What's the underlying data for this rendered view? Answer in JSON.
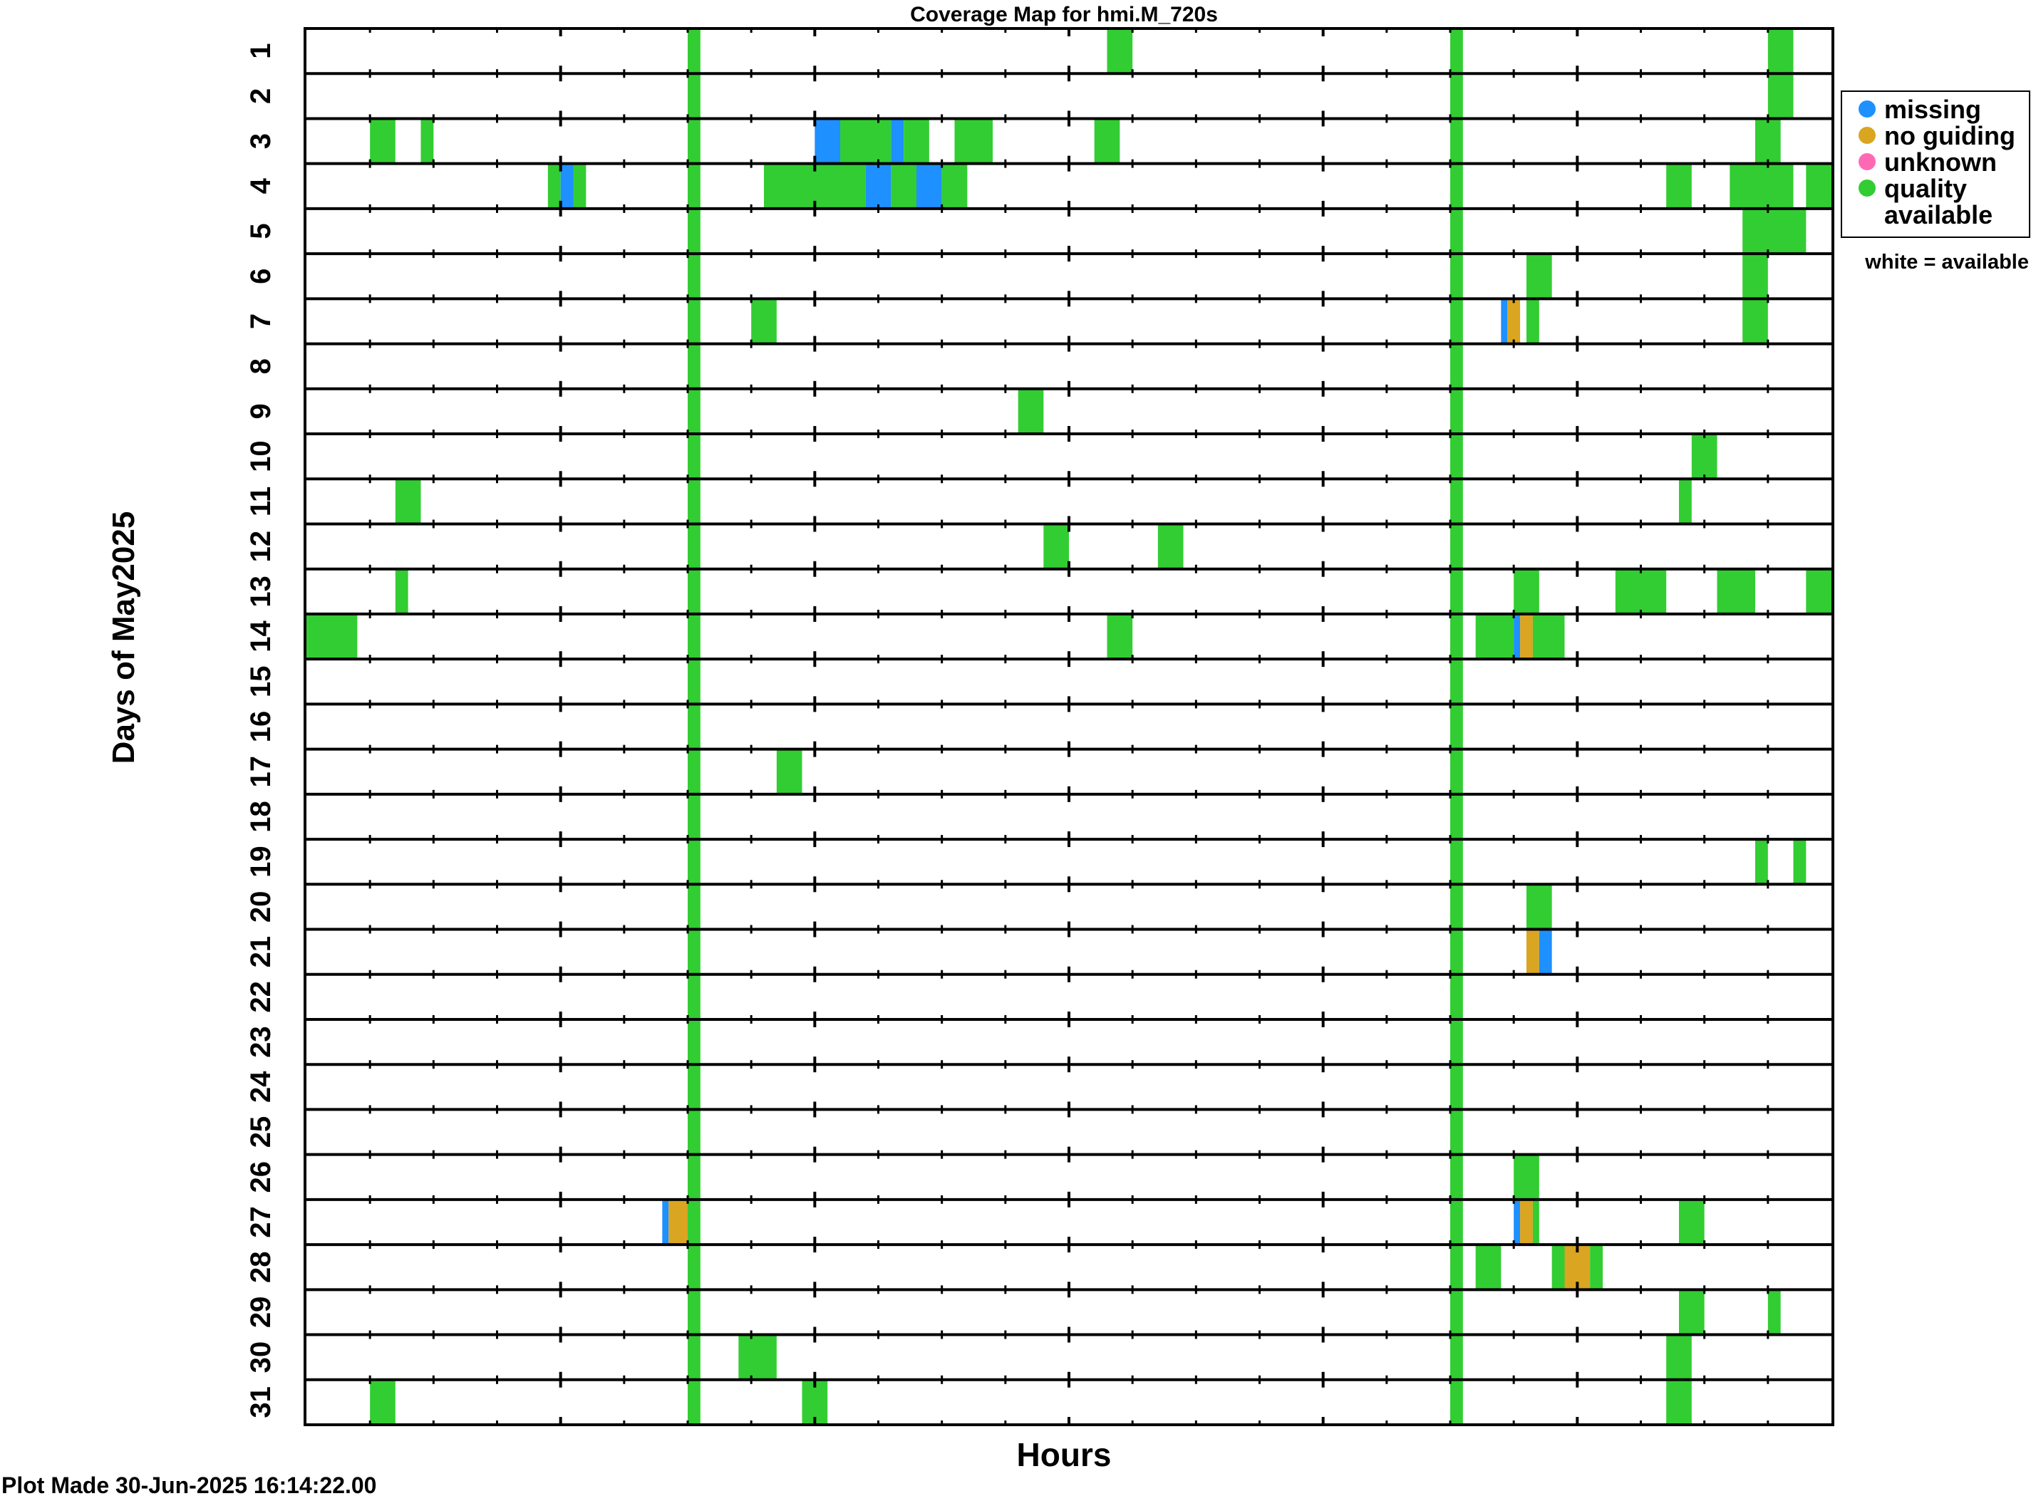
{
  "chart_data": {
    "type": "heatmap",
    "title": "Coverage Map for hmi.M_720s",
    "xlabel": "Hours",
    "ylabel": "Days of May2025",
    "xlim": [
      0,
      24
    ],
    "x_ticks_hours": [
      0,
      1,
      2,
      3,
      4,
      5,
      6,
      7,
      8,
      9,
      10,
      11,
      12,
      13,
      14,
      15,
      16,
      17,
      18,
      19,
      20,
      21,
      22,
      23,
      24
    ],
    "days": [
      1,
      2,
      3,
      4,
      5,
      6,
      7,
      8,
      9,
      10,
      11,
      12,
      13,
      14,
      15,
      16,
      17,
      18,
      19,
      20,
      21,
      22,
      23,
      24,
      25,
      26,
      27,
      28,
      29,
      30,
      31
    ],
    "day_labels": [
      "1",
      "2",
      "3",
      "4",
      "5",
      "6",
      "7",
      "8",
      "9",
      "10",
      "11",
      "12",
      "13",
      "14",
      "15",
      "16",
      "17",
      "18",
      "19",
      "20",
      "21",
      "22",
      "23",
      "24",
      "25",
      "26",
      "27",
      "28",
      "29",
      "30",
      "31"
    ],
    "grid": true,
    "legend": {
      "position": "right",
      "items": [
        {
          "label": "missing",
          "color": "#1e90ff"
        },
        {
          "label": "no guiding",
          "color": "#daa520"
        },
        {
          "label": "unknown",
          "color": "#ff69b4"
        },
        {
          "label": "quality",
          "label2": "available",
          "color": "#32cd32"
        }
      ],
      "note": "white = available"
    },
    "colors": {
      "missing": "#1e90ff",
      "noguiding": "#daa520",
      "unknown": "#ff69b4",
      "quality": "#32cd32"
    },
    "daily_bands": [
      {
        "start": 6.0,
        "end": 6.2,
        "status": "quality"
      },
      {
        "start": 18.0,
        "end": 18.2,
        "status": "quality"
      }
    ],
    "segments": [
      {
        "day": 1,
        "start": 12.6,
        "end": 13.0,
        "status": "quality"
      },
      {
        "day": 1,
        "start": 23.0,
        "end": 23.4,
        "status": "quality"
      },
      {
        "day": 2,
        "start": 23.0,
        "end": 23.4,
        "status": "quality"
      },
      {
        "day": 3,
        "start": 1.0,
        "end": 1.4,
        "status": "quality"
      },
      {
        "day": 3,
        "start": 1.8,
        "end": 2.0,
        "status": "quality"
      },
      {
        "day": 3,
        "start": 8.0,
        "end": 8.4,
        "status": "missing"
      },
      {
        "day": 3,
        "start": 8.4,
        "end": 9.2,
        "status": "quality"
      },
      {
        "day": 3,
        "start": 9.2,
        "end": 9.4,
        "status": "missing"
      },
      {
        "day": 3,
        "start": 9.4,
        "end": 9.8,
        "status": "quality"
      },
      {
        "day": 3,
        "start": 10.2,
        "end": 10.8,
        "status": "quality"
      },
      {
        "day": 3,
        "start": 12.4,
        "end": 12.8,
        "status": "quality"
      },
      {
        "day": 3,
        "start": 22.8,
        "end": 23.2,
        "status": "quality"
      },
      {
        "day": 4,
        "start": 3.8,
        "end": 4.0,
        "status": "quality"
      },
      {
        "day": 4,
        "start": 4.0,
        "end": 4.2,
        "status": "missing"
      },
      {
        "day": 4,
        "start": 4.2,
        "end": 4.4,
        "status": "quality"
      },
      {
        "day": 4,
        "start": 7.2,
        "end": 8.8,
        "status": "quality"
      },
      {
        "day": 4,
        "start": 8.8,
        "end": 9.2,
        "status": "missing"
      },
      {
        "day": 4,
        "start": 9.2,
        "end": 9.6,
        "status": "quality"
      },
      {
        "day": 4,
        "start": 9.6,
        "end": 10.0,
        "status": "missing"
      },
      {
        "day": 4,
        "start": 10.0,
        "end": 10.4,
        "status": "quality"
      },
      {
        "day": 4,
        "start": 21.4,
        "end": 21.8,
        "status": "quality"
      },
      {
        "day": 4,
        "start": 22.4,
        "end": 22.8,
        "status": "quality"
      },
      {
        "day": 4,
        "start": 22.8,
        "end": 23.4,
        "status": "quality"
      },
      {
        "day": 4,
        "start": 23.6,
        "end": 24.0,
        "status": "quality"
      },
      {
        "day": 5,
        "start": 22.6,
        "end": 23.6,
        "status": "quality"
      },
      {
        "day": 6,
        "start": 19.2,
        "end": 19.6,
        "status": "quality"
      },
      {
        "day": 6,
        "start": 22.6,
        "end": 23.0,
        "status": "quality"
      },
      {
        "day": 7,
        "start": 7.0,
        "end": 7.4,
        "status": "quality"
      },
      {
        "day": 7,
        "start": 18.8,
        "end": 18.9,
        "status": "missing"
      },
      {
        "day": 7,
        "start": 18.9,
        "end": 19.1,
        "status": "noguiding"
      },
      {
        "day": 7,
        "start": 19.2,
        "end": 19.4,
        "status": "quality"
      },
      {
        "day": 7,
        "start": 22.6,
        "end": 23.0,
        "status": "quality"
      },
      {
        "day": 9,
        "start": 11.2,
        "end": 11.6,
        "status": "quality"
      },
      {
        "day": 10,
        "start": 21.8,
        "end": 22.2,
        "status": "quality"
      },
      {
        "day": 11,
        "start": 1.4,
        "end": 1.8,
        "status": "quality"
      },
      {
        "day": 11,
        "start": 21.6,
        "end": 21.8,
        "status": "quality"
      },
      {
        "day": 12,
        "start": 11.6,
        "end": 12.0,
        "status": "quality"
      },
      {
        "day": 12,
        "start": 13.4,
        "end": 13.8,
        "status": "quality"
      },
      {
        "day": 13,
        "start": 1.4,
        "end": 1.6,
        "status": "quality"
      },
      {
        "day": 13,
        "start": 19.0,
        "end": 19.4,
        "status": "quality"
      },
      {
        "day": 13,
        "start": 20.6,
        "end": 21.4,
        "status": "quality"
      },
      {
        "day": 13,
        "start": 22.2,
        "end": 22.8,
        "status": "quality"
      },
      {
        "day": 13,
        "start": 23.6,
        "end": 24.0,
        "status": "quality"
      },
      {
        "day": 14,
        "start": 0.0,
        "end": 0.8,
        "status": "quality"
      },
      {
        "day": 14,
        "start": 12.6,
        "end": 13.0,
        "status": "quality"
      },
      {
        "day": 14,
        "start": 18.4,
        "end": 19.0,
        "status": "quality"
      },
      {
        "day": 14,
        "start": 19.0,
        "end": 19.1,
        "status": "missing"
      },
      {
        "day": 14,
        "start": 19.1,
        "end": 19.3,
        "status": "noguiding"
      },
      {
        "day": 14,
        "start": 19.3,
        "end": 19.8,
        "status": "quality"
      },
      {
        "day": 17,
        "start": 7.4,
        "end": 7.8,
        "status": "quality"
      },
      {
        "day": 19,
        "start": 22.8,
        "end": 23.0,
        "status": "quality"
      },
      {
        "day": 19,
        "start": 23.4,
        "end": 23.6,
        "status": "quality"
      },
      {
        "day": 20,
        "start": 19.2,
        "end": 19.6,
        "status": "quality"
      },
      {
        "day": 21,
        "start": 19.2,
        "end": 19.4,
        "status": "noguiding"
      },
      {
        "day": 21,
        "start": 19.4,
        "end": 19.6,
        "status": "missing"
      },
      {
        "day": 26,
        "start": 19.0,
        "end": 19.4,
        "status": "quality"
      },
      {
        "day": 27,
        "start": 5.6,
        "end": 5.7,
        "status": "missing"
      },
      {
        "day": 27,
        "start": 5.7,
        "end": 6.0,
        "status": "noguiding"
      },
      {
        "day": 27,
        "start": 19.0,
        "end": 19.1,
        "status": "missing"
      },
      {
        "day": 27,
        "start": 19.1,
        "end": 19.3,
        "status": "noguiding"
      },
      {
        "day": 27,
        "start": 19.3,
        "end": 19.4,
        "status": "quality"
      },
      {
        "day": 27,
        "start": 21.6,
        "end": 22.0,
        "status": "quality"
      },
      {
        "day": 28,
        "start": 18.4,
        "end": 18.8,
        "status": "quality"
      },
      {
        "day": 28,
        "start": 19.6,
        "end": 19.8,
        "status": "quality"
      },
      {
        "day": 28,
        "start": 19.8,
        "end": 20.2,
        "status": "noguiding"
      },
      {
        "day": 28,
        "start": 20.2,
        "end": 20.4,
        "status": "quality"
      },
      {
        "day": 29,
        "start": 21.6,
        "end": 22.0,
        "status": "quality"
      },
      {
        "day": 29,
        "start": 23.0,
        "end": 23.2,
        "status": "quality"
      },
      {
        "day": 30,
        "start": 6.8,
        "end": 7.4,
        "status": "quality"
      },
      {
        "day": 30,
        "start": 21.4,
        "end": 21.8,
        "status": "quality"
      },
      {
        "day": 31,
        "start": 1.0,
        "end": 1.4,
        "status": "quality"
      },
      {
        "day": 31,
        "start": 7.8,
        "end": 8.2,
        "status": "quality"
      },
      {
        "day": 31,
        "start": 21.4,
        "end": 21.8,
        "status": "quality"
      }
    ]
  },
  "footer": {
    "plot_made": "Plot Made 30-Jun-2025 16:14:22.00"
  }
}
